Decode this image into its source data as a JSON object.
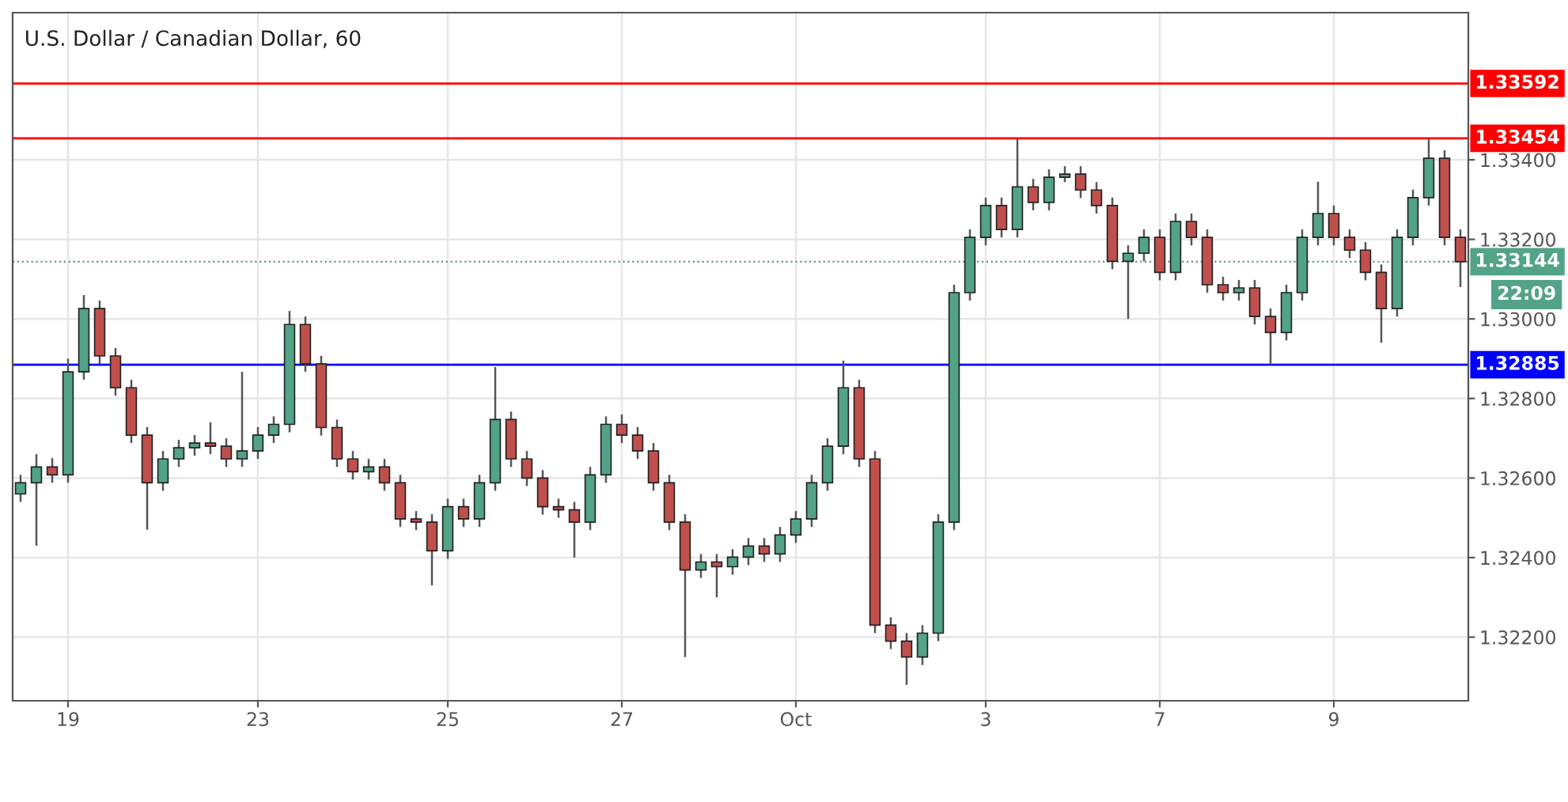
{
  "chart_data": {
    "type": "candlestick",
    "title": "U.S. Dollar / Canadian Dollar, 60",
    "categories": [
      null,
      null,
      null,
      "19",
      null,
      null,
      null,
      null,
      null,
      null,
      null,
      null,
      null,
      null,
      null,
      "23",
      null,
      null,
      null,
      null,
      null,
      null,
      null,
      null,
      null,
      null,
      null,
      "25",
      null,
      null,
      null,
      null,
      null,
      null,
      null,
      null,
      null,
      null,
      "27",
      null,
      null,
      null,
      null,
      null,
      null,
      null,
      null,
      null,
      null,
      "Oct",
      null,
      null,
      null,
      null,
      null,
      null,
      null,
      null,
      null,
      null,
      null,
      "3",
      null,
      null,
      null,
      null,
      null,
      null,
      null,
      null,
      null,
      null,
      "7",
      null,
      null,
      null,
      null,
      null,
      null,
      null,
      null,
      null,
      null,
      "9",
      null,
      null,
      null,
      null,
      null,
      null,
      null,
      null
    ],
    "ohlc": [
      [
        1.3256,
        1.32608,
        1.3254,
        1.32588
      ],
      [
        1.32588,
        1.3266,
        1.3243,
        1.32628
      ],
      [
        1.32628,
        1.3265,
        1.32588,
        1.32608
      ],
      [
        1.32608,
        1.329,
        1.32588,
        1.32867
      ],
      [
        1.32867,
        1.3306,
        1.32847,
        1.33026
      ],
      [
        1.33026,
        1.33046,
        1.32887,
        1.32907
      ],
      [
        1.32907,
        1.32927,
        1.32807,
        1.32827
      ],
      [
        1.32827,
        1.32847,
        1.32688,
        1.32708
      ],
      [
        1.32708,
        1.32728,
        1.3247,
        1.32588
      ],
      [
        1.32588,
        1.32668,
        1.32568,
        1.32648
      ],
      [
        1.32648,
        1.32696,
        1.32628,
        1.32676
      ],
      [
        1.32676,
        1.32708,
        1.32656,
        1.32688
      ],
      [
        1.32688,
        1.3274,
        1.3266,
        1.3268
      ],
      [
        1.3268,
        1.327,
        1.32628,
        1.32648
      ],
      [
        1.32648,
        1.32867,
        1.32628,
        1.32668
      ],
      [
        1.32668,
        1.32728,
        1.32648,
        1.32708
      ],
      [
        1.32708,
        1.32755,
        1.32688,
        1.32735
      ],
      [
        1.32735,
        1.3302,
        1.32715,
        1.32986
      ],
      [
        1.32986,
        1.33006,
        1.32867,
        1.32887
      ],
      [
        1.32887,
        1.32907,
        1.32707,
        1.32727
      ],
      [
        1.32727,
        1.32747,
        1.32628,
        1.32648
      ],
      [
        1.32648,
        1.32668,
        1.32596,
        1.32616
      ],
      [
        1.32616,
        1.32648,
        1.32596,
        1.32628
      ],
      [
        1.32628,
        1.32648,
        1.32568,
        1.32588
      ],
      [
        1.32588,
        1.32608,
        1.32477,
        1.32497
      ],
      [
        1.32497,
        1.32517,
        1.32469,
        1.32489
      ],
      [
        1.32489,
        1.32509,
        1.3233,
        1.32417
      ],
      [
        1.32417,
        1.32548,
        1.32397,
        1.32528
      ],
      [
        1.32528,
        1.32548,
        1.32477,
        1.32497
      ],
      [
        1.32497,
        1.32608,
        1.32477,
        1.32588
      ],
      [
        1.32588,
        1.32879,
        1.32568,
        1.32747
      ],
      [
        1.32747,
        1.32767,
        1.32628,
        1.32648
      ],
      [
        1.32648,
        1.32668,
        1.3258,
        1.326
      ],
      [
        1.326,
        1.3262,
        1.32508,
        1.32528
      ],
      [
        1.32528,
        1.32548,
        1.325,
        1.3252
      ],
      [
        1.3252,
        1.3254,
        1.324,
        1.32489
      ],
      [
        1.32489,
        1.32628,
        1.32469,
        1.32608
      ],
      [
        1.32608,
        1.32755,
        1.32588,
        1.32735
      ],
      [
        1.32735,
        1.3276,
        1.32688,
        1.32708
      ],
      [
        1.32708,
        1.32728,
        1.32648,
        1.32668
      ],
      [
        1.32668,
        1.32688,
        1.32568,
        1.32588
      ],
      [
        1.32588,
        1.32608,
        1.32469,
        1.32489
      ],
      [
        1.32489,
        1.32509,
        1.3215,
        1.32369
      ],
      [
        1.32369,
        1.32409,
        1.32349,
        1.32389
      ],
      [
        1.32389,
        1.32409,
        1.323,
        1.32377
      ],
      [
        1.32377,
        1.32421,
        1.32357,
        1.32401
      ],
      [
        1.32401,
        1.32449,
        1.32381,
        1.32429
      ],
      [
        1.32429,
        1.32449,
        1.32389,
        1.32409
      ],
      [
        1.32409,
        1.32477,
        1.32389,
        1.32457
      ],
      [
        1.32457,
        1.32517,
        1.32437,
        1.32497
      ],
      [
        1.32497,
        1.32608,
        1.32477,
        1.32588
      ],
      [
        1.32588,
        1.327,
        1.32568,
        1.3268
      ],
      [
        1.3268,
        1.32895,
        1.3266,
        1.32827
      ],
      [
        1.32827,
        1.32847,
        1.32628,
        1.32648
      ],
      [
        1.32648,
        1.32668,
        1.3221,
        1.3223
      ],
      [
        1.3223,
        1.3225,
        1.3217,
        1.3219
      ],
      [
        1.3219,
        1.3221,
        1.3208,
        1.3215
      ],
      [
        1.3215,
        1.3223,
        1.3213,
        1.3221
      ],
      [
        1.3221,
        1.32509,
        1.3219,
        1.32489
      ],
      [
        1.32489,
        1.33086,
        1.32469,
        1.33066
      ],
      [
        1.33066,
        1.33225,
        1.33046,
        1.33205
      ],
      [
        1.33205,
        1.33305,
        1.33185,
        1.33285
      ],
      [
        1.33285,
        1.33305,
        1.33205,
        1.33225
      ],
      [
        1.33225,
        1.33454,
        1.33205,
        1.33332
      ],
      [
        1.33332,
        1.33352,
        1.33273,
        1.33293
      ],
      [
        1.33293,
        1.33376,
        1.33273,
        1.33356
      ],
      [
        1.33356,
        1.33384,
        1.33344,
        1.33364
      ],
      [
        1.33364,
        1.33384,
        1.33304,
        1.33324
      ],
      [
        1.33324,
        1.33344,
        1.33265,
        1.33285
      ],
      [
        1.33285,
        1.33305,
        1.33125,
        1.33145
      ],
      [
        1.33145,
        1.33185,
        1.33,
        1.33165
      ],
      [
        1.33165,
        1.33225,
        1.33145,
        1.33205
      ],
      [
        1.33205,
        1.33225,
        1.33097,
        1.33117
      ],
      [
        1.33117,
        1.33265,
        1.33097,
        1.33245
      ],
      [
        1.33245,
        1.33265,
        1.33185,
        1.33205
      ],
      [
        1.33205,
        1.33225,
        1.33066,
        1.33086
      ],
      [
        1.33086,
        1.33106,
        1.33046,
        1.33066
      ],
      [
        1.33066,
        1.33098,
        1.33046,
        1.33078
      ],
      [
        1.33078,
        1.33098,
        1.32986,
        1.33006
      ],
      [
        1.33006,
        1.33026,
        1.32885,
        1.32966
      ],
      [
        1.32966,
        1.33086,
        1.32946,
        1.33066
      ],
      [
        1.33066,
        1.33225,
        1.33046,
        1.33205
      ],
      [
        1.33205,
        1.33345,
        1.33185,
        1.33265
      ],
      [
        1.33265,
        1.33285,
        1.33185,
        1.33205
      ],
      [
        1.33205,
        1.33225,
        1.33153,
        1.33173
      ],
      [
        1.33173,
        1.33193,
        1.33097,
        1.33117
      ],
      [
        1.33117,
        1.33137,
        1.3294,
        1.33026
      ],
      [
        1.33026,
        1.33225,
        1.33006,
        1.33205
      ],
      [
        1.33205,
        1.33325,
        1.33185,
        1.33305
      ],
      [
        1.33305,
        1.33454,
        1.33285,
        1.33404
      ],
      [
        1.33404,
        1.33424,
        1.33185,
        1.33205
      ],
      [
        1.33205,
        1.33225,
        1.3308,
        1.33144
      ]
    ],
    "ylim": [
      1.3204,
      1.3377
    ],
    "yticks": [
      {
        "value": 1.322,
        "label": "1.32200"
      },
      {
        "value": 1.324,
        "label": "1.32400"
      },
      {
        "value": 1.326,
        "label": "1.32600"
      },
      {
        "value": 1.328,
        "label": "1.32800"
      },
      {
        "value": 1.33,
        "label": "1.33000"
      },
      {
        "value": 1.332,
        "label": "1.33200"
      },
      {
        "value": 1.334,
        "label": "1.33400"
      }
    ],
    "grid": true,
    "ref_lines": [
      {
        "axis": "y",
        "value": 1.33592,
        "label": "1.33592",
        "color": "#ff0000",
        "line_style": "solid"
      },
      {
        "axis": "y",
        "value": 1.33454,
        "label": "1.33454",
        "color": "#ff0000",
        "line_style": "solid"
      },
      {
        "axis": "y",
        "value": 1.32885,
        "label": "1.32885",
        "color": "#0000ff",
        "line_style": "solid"
      },
      {
        "axis": "y",
        "value": 1.33144,
        "label": "1.33144",
        "color": "#53a386",
        "line_style": "dotted"
      }
    ],
    "annotations": [
      "22:09"
    ]
  }
}
